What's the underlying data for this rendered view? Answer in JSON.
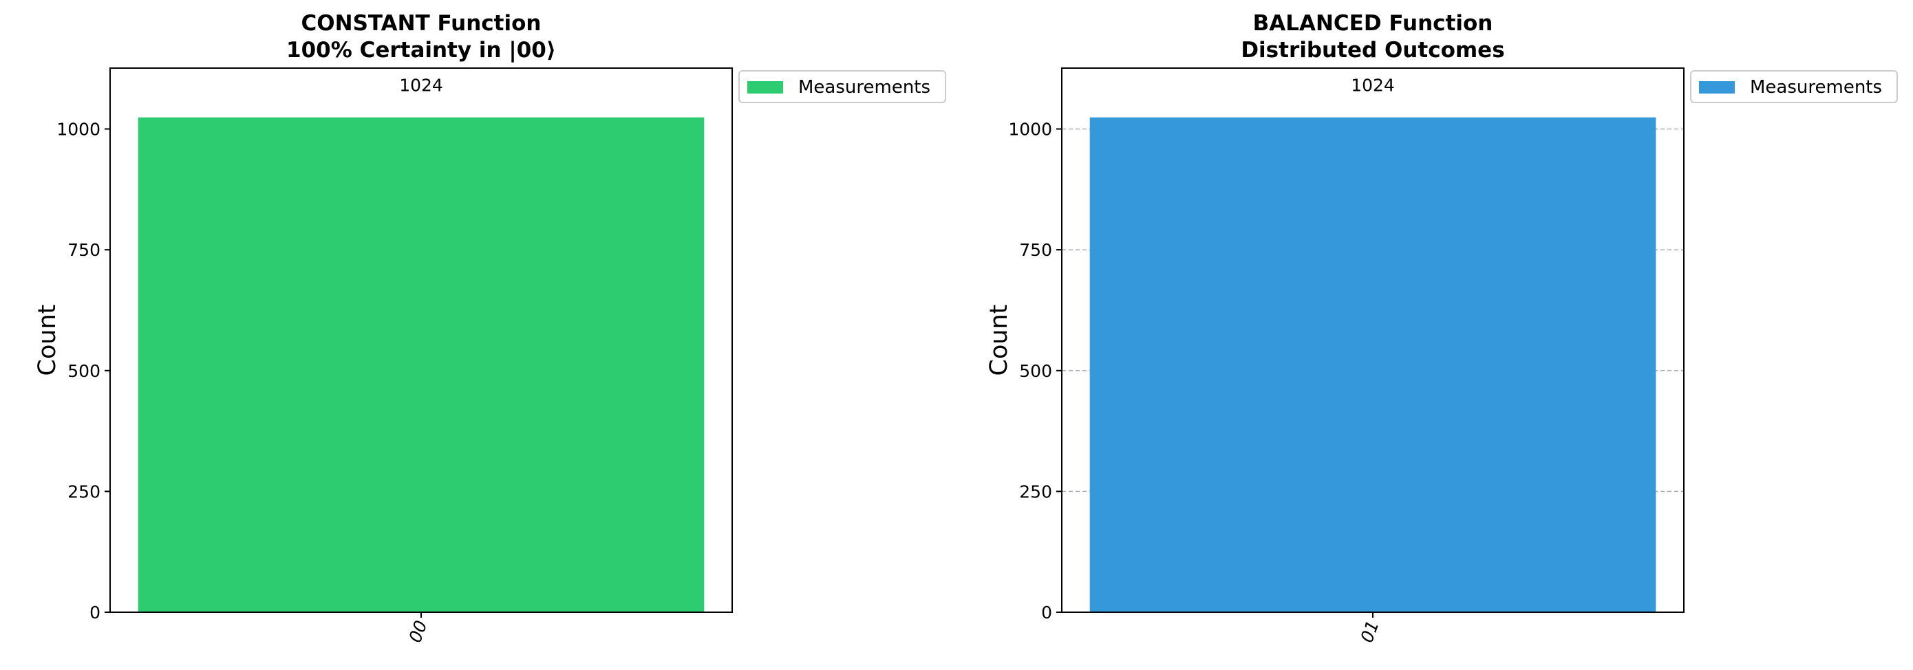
{
  "chart_data": [
    {
      "type": "bar",
      "title": [
        "CONSTANT Function",
        "100% Certainty in |00⟩"
      ],
      "ylabel": "Count",
      "categories": [
        "00"
      ],
      "series": [
        {
          "name": "Measurements",
          "color": "#2ecc71",
          "values": [
            1024
          ]
        }
      ],
      "ylim": [
        0,
        1126
      ],
      "yticks": [
        0,
        250,
        500,
        750,
        1000
      ],
      "grid": false,
      "legend": "outside-upper-right"
    },
    {
      "type": "bar",
      "title": [
        "BALANCED Function",
        "Distributed Outcomes"
      ],
      "ylabel": "Count",
      "categories": [
        "01"
      ],
      "series": [
        {
          "name": "Measurements",
          "color": "#3498db",
          "values": [
            1024
          ]
        }
      ],
      "ylim": [
        0,
        1126
      ],
      "yticks": [
        0,
        250,
        500,
        750,
        1000
      ],
      "grid": true,
      "legend": "outside-upper-right"
    }
  ]
}
